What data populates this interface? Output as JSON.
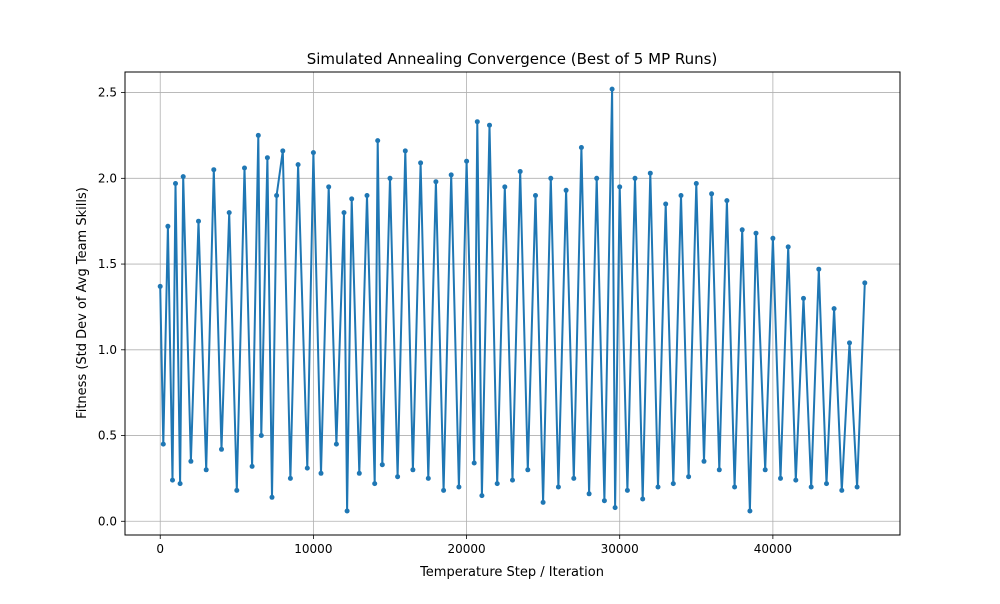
{
  "chart_data": {
    "type": "line",
    "title": "Simulated Annealing Convergence (Best of 5 MP Runs)",
    "xlabel": "Temperature Step / Iteration",
    "ylabel": "Fitness (Std Dev of Avg Team Skills)",
    "xlim": [
      -2300,
      48300
    ],
    "ylim": [
      -0.08,
      2.62
    ],
    "xticks": [
      0,
      10000,
      20000,
      30000,
      40000
    ],
    "yticks": [
      0.0,
      0.5,
      1.0,
      1.5,
      2.0,
      2.5
    ],
    "xtick_labels": [
      "0",
      "10000",
      "20000",
      "30000",
      "40000"
    ],
    "ytick_labels": [
      "0.0",
      "0.5",
      "1.0",
      "1.5",
      "2.0",
      "2.5"
    ],
    "grid": true,
    "marker": "circle",
    "color": "#1f77b4",
    "series": [
      {
        "values_note": "Dense noisy series sampled at key visible points",
        "x": [
          0,
          200,
          500,
          800,
          1000,
          1300,
          1500,
          2000,
          2500,
          3000,
          3500,
          4000,
          4500,
          5000,
          5500,
          6000,
          6400,
          6600,
          7000,
          7300,
          7600,
          8000,
          8500,
          9000,
          9600,
          10000,
          10500,
          11000,
          11500,
          12000,
          12200,
          12500,
          13000,
          13500,
          14000,
          14200,
          14500,
          15000,
          15500,
          16000,
          16500,
          17000,
          17500,
          18000,
          18500,
          19000,
          19500,
          20000,
          20500,
          20700,
          21000,
          21500,
          22000,
          22500,
          23000,
          23500,
          24000,
          24500,
          25000,
          25500,
          26000,
          26500,
          27000,
          27500,
          28000,
          28500,
          29000,
          29500,
          29700,
          30000,
          30500,
          31000,
          31500,
          32000,
          32500,
          33000,
          33500,
          34000,
          34500,
          35000,
          35500,
          36000,
          36500,
          37000,
          37500,
          38000,
          38500,
          38900,
          39500,
          40000,
          40500,
          41000,
          41500,
          42000,
          42500,
          43000,
          43500,
          44000,
          44500,
          45000,
          45500,
          46000
        ],
        "y": [
          1.37,
          0.45,
          1.72,
          0.24,
          1.97,
          0.22,
          2.01,
          0.35,
          1.75,
          0.3,
          2.05,
          0.42,
          1.8,
          0.18,
          2.06,
          0.32,
          2.25,
          0.5,
          2.12,
          0.14,
          1.9,
          2.16,
          0.25,
          2.08,
          0.31,
          2.15,
          0.28,
          1.95,
          0.45,
          1.8,
          0.06,
          1.88,
          0.28,
          1.9,
          0.22,
          2.22,
          0.33,
          2.0,
          0.26,
          2.16,
          0.3,
          2.09,
          0.25,
          1.98,
          0.18,
          2.02,
          0.2,
          2.1,
          0.34,
          2.33,
          0.15,
          2.31,
          0.22,
          1.95,
          0.24,
          2.04,
          0.3,
          1.9,
          0.11,
          2.0,
          0.2,
          1.93,
          0.25,
          2.18,
          0.16,
          2.0,
          0.12,
          2.52,
          0.08,
          1.95,
          0.18,
          2.0,
          0.13,
          2.03,
          0.2,
          1.85,
          0.22,
          1.9,
          0.26,
          1.97,
          0.35,
          1.91,
          0.3,
          1.87,
          0.2,
          1.7,
          0.06,
          1.68,
          0.3,
          1.65,
          0.25,
          1.6,
          0.24,
          1.3,
          0.2,
          1.47,
          0.22,
          1.24,
          0.18,
          1.04,
          0.2,
          1.39
        ]
      }
    ]
  }
}
